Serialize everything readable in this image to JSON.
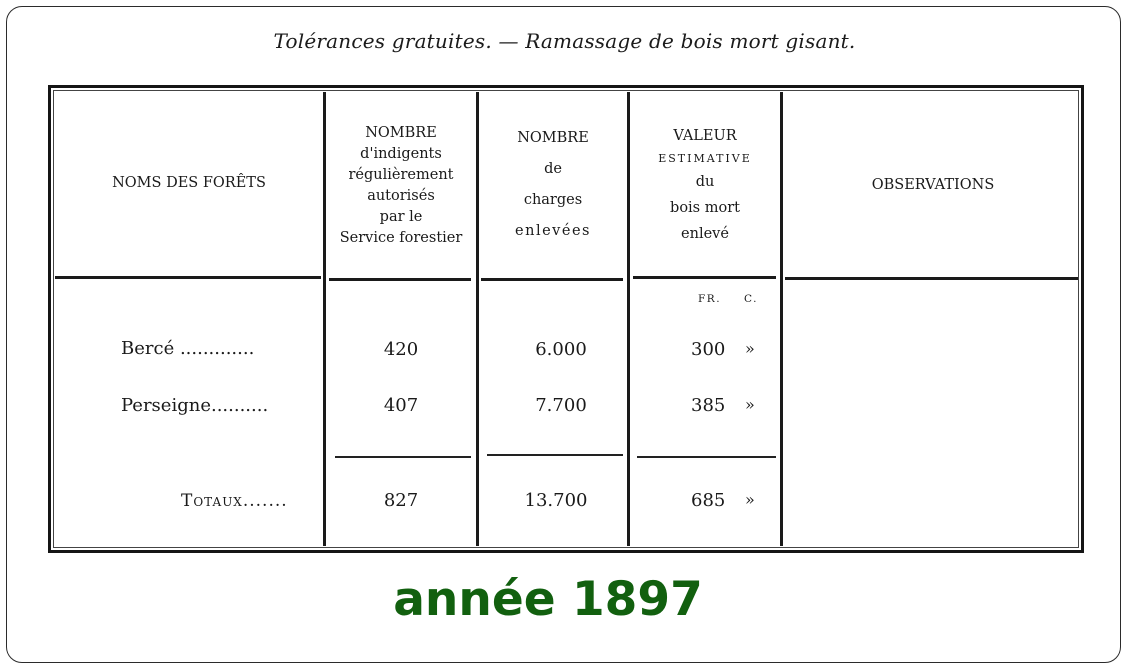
{
  "title": "Tolérances gratuites. — Ramassage de bois mort gisant.",
  "headers": {
    "noms": "NOMS DES FORÊTS",
    "indigents": [
      "NOMBRE",
      "d'indigents",
      "régulièrement",
      "autorisés",
      "par le",
      "Service forestier"
    ],
    "charges": [
      "NOMBRE",
      "de",
      "charges",
      "enlevées"
    ],
    "valeur": [
      "VALEUR",
      "ESTIMATIVE",
      "du",
      "bois mort",
      "enlevé"
    ],
    "observations": "OBSERVATIONS"
  },
  "units": {
    "fr": "FR.",
    "c": "C."
  },
  "rows": [
    {
      "foret": "Bercé .............",
      "indigents": "420",
      "charges": "6.000",
      "valeur_fr": "300",
      "valeur_c": "»"
    },
    {
      "foret": "Perseigne..........",
      "indigents": "407",
      "charges": "7.700",
      "valeur_fr": "385",
      "valeur_c": "»"
    }
  ],
  "totaux": {
    "label": "Totaux.......",
    "indigents": "827",
    "charges": "13.700",
    "valeur_fr": "685",
    "valeur_c": "»"
  },
  "caption": "année 1897"
}
